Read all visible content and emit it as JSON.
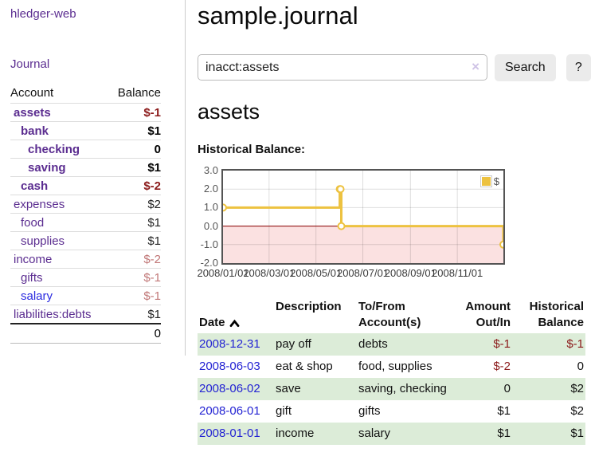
{
  "colors": {
    "accent_purple": "#5b2d90",
    "link_blue": "#2323d3",
    "negative_strong": "#8b1a1a",
    "negative_soft": "#c17777",
    "row_green": "#dcecd8",
    "series_gold": "#edc240",
    "negative_region_fill": "#fbe1e1",
    "zero_line": "#8b0000"
  },
  "sidebar": {
    "app_title": "hledger-web",
    "journal_label": "Journal",
    "accounts_table": {
      "header_account": "Account",
      "header_balance": "Balance",
      "rows": [
        {
          "name": "assets",
          "depth": 1,
          "bold": true,
          "blue": false,
          "balance": "$-1",
          "balance_class": "neg-strong"
        },
        {
          "name": "bank",
          "depth": 2,
          "bold": true,
          "blue": false,
          "balance": "$1",
          "balance_class": "b"
        },
        {
          "name": "checking",
          "depth": 3,
          "bold": true,
          "blue": false,
          "balance": "0",
          "balance_class": "b"
        },
        {
          "name": "saving",
          "depth": 3,
          "bold": true,
          "blue": false,
          "balance": "$1",
          "balance_class": "b"
        },
        {
          "name": "cash",
          "depth": 2,
          "bold": true,
          "blue": false,
          "balance": "$-2",
          "balance_class": "neg-strong"
        },
        {
          "name": "expenses",
          "depth": 1,
          "bold": false,
          "blue": false,
          "balance": "$2",
          "balance_class": ""
        },
        {
          "name": "food",
          "depth": 2,
          "bold": false,
          "blue": false,
          "balance": "$1",
          "balance_class": ""
        },
        {
          "name": "supplies",
          "depth": 2,
          "bold": false,
          "blue": false,
          "balance": "$1",
          "balance_class": ""
        },
        {
          "name": "income",
          "depth": 1,
          "bold": false,
          "blue": false,
          "balance": "$-2",
          "balance_class": "neg-soft"
        },
        {
          "name": "gifts",
          "depth": 2,
          "bold": false,
          "blue": false,
          "balance": "$-1",
          "balance_class": "neg-soft"
        },
        {
          "name": "salary",
          "depth": 2,
          "bold": false,
          "blue": true,
          "balance": "$-1",
          "balance_class": "neg-soft"
        },
        {
          "name": "liabilities:debts",
          "depth": 1,
          "bold": false,
          "blue": false,
          "balance": "$1",
          "balance_class": ""
        }
      ],
      "total": "0"
    }
  },
  "main": {
    "title": "sample.journal",
    "search": {
      "value": "inacct:assets",
      "clear_icon": "×",
      "button_label": "Search",
      "help_label": "?"
    },
    "account_heading": "assets",
    "chart_label": "Historical Balance:",
    "chart_data": {
      "type": "line",
      "interpolation": "step-after",
      "title": "Historical Balance",
      "xlim": [
        "2008-01-01",
        "2008-12-31"
      ],
      "ylim": [
        -2,
        3
      ],
      "grid": true,
      "y_ticks": [
        {
          "v": 3,
          "label": "3.0"
        },
        {
          "v": 2,
          "label": "2.0"
        },
        {
          "v": 1,
          "label": "1.0"
        },
        {
          "v": 0,
          "label": "0.0"
        },
        {
          "v": -1,
          "label": "-1.0"
        },
        {
          "v": -2,
          "label": "-2.0"
        }
      ],
      "x_ticks": [
        {
          "date": "2008-01-01",
          "label": "2008/01/01"
        },
        {
          "date": "2008-03-01",
          "label": "2008/03/01"
        },
        {
          "date": "2008-05-01",
          "label": "2008/05/01"
        },
        {
          "date": "2008-07-01",
          "label": "2008/07/01"
        },
        {
          "date": "2008-09-01",
          "label": "2008/09/01"
        },
        {
          "date": "2008-11-01",
          "label": "2008/11/01"
        }
      ],
      "series": [
        {
          "name": "$",
          "color": "#edc240",
          "points": [
            [
              "2008-01-01",
              1
            ],
            [
              "2008-06-01",
              2
            ],
            [
              "2008-06-02",
              2
            ],
            [
              "2008-06-03",
              0
            ],
            [
              "2008-12-31",
              -1
            ]
          ]
        }
      ],
      "legend": {
        "label": "$",
        "position": "top-right"
      },
      "negative_region": {
        "fill": "#fbe1e1",
        "zero_line_color": "#8b0000"
      }
    },
    "register": {
      "headers": {
        "date": "Date",
        "description": "Description",
        "accounts": "To/From\nAccount(s)",
        "amount": "Amount\nOut/In",
        "balance": "Historical\nBalance"
      },
      "sort": {
        "column": "date",
        "direction": "ascending"
      },
      "rows": [
        {
          "date": "2008-12-31",
          "description": "pay off",
          "accounts": "debts",
          "amount": "$-1",
          "amount_negative": true,
          "balance": "$-1",
          "balance_negative": true,
          "shaded": true
        },
        {
          "date": "2008-06-03",
          "description": "eat & shop",
          "accounts": "food, supplies",
          "amount": "$-2",
          "amount_negative": true,
          "balance": "0",
          "balance_negative": false,
          "shaded": false
        },
        {
          "date": "2008-06-02",
          "description": "save",
          "accounts": "saving, checking",
          "amount": "0",
          "amount_negative": false,
          "balance": "$2",
          "balance_negative": false,
          "shaded": true
        },
        {
          "date": "2008-06-01",
          "description": "gift",
          "accounts": "gifts",
          "amount": "$1",
          "amount_negative": false,
          "balance": "$2",
          "balance_negative": false,
          "shaded": false
        },
        {
          "date": "2008-01-01",
          "description": "income",
          "accounts": "salary",
          "amount": "$1",
          "amount_negative": false,
          "balance": "$1",
          "balance_negative": false,
          "shaded": true
        }
      ]
    }
  }
}
